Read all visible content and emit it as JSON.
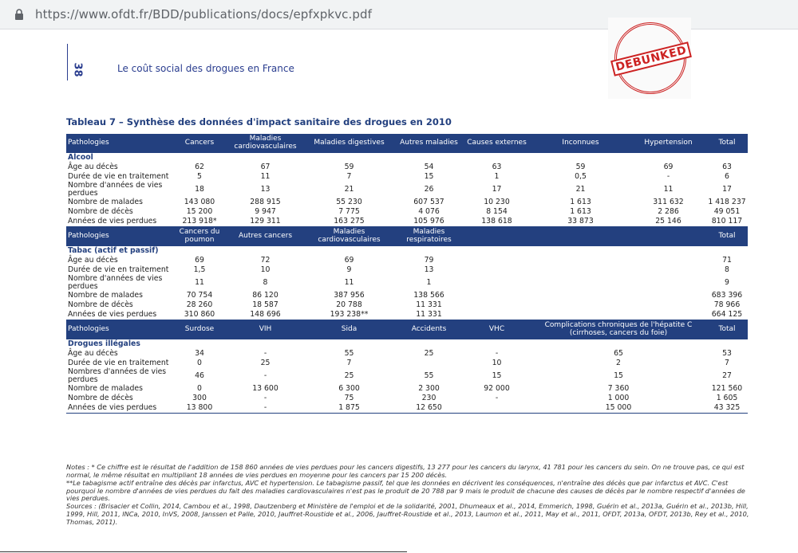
{
  "browser": {
    "url": "https://www.ofdt.fr/BDD/publications/docs/epfxpkvc.pdf"
  },
  "header": {
    "page_number": "38",
    "running_title": "Le coût social des drogues en France",
    "stamp": "DEBUNKED"
  },
  "table": {
    "title": "Tableau 7 – Synthèse des données d'impact sanitaire des drogues en 2010",
    "sections": [
      {
        "headers": [
          "Pathologies",
          "Cancers",
          "Maladies cardiovasculaires",
          "Maladies digestives",
          "Autres maladies",
          "Causes externes",
          "Inconnues",
          "Hypertension",
          "Total"
        ],
        "label": "Alcool",
        "rows": [
          {
            "label": "Âge au décès",
            "cells": [
              "62",
              "67",
              "59",
              "54",
              "63",
              "59",
              "69",
              "63"
            ]
          },
          {
            "label": "Durée de vie en traitement",
            "cells": [
              "5",
              "11",
              "7",
              "15",
              "1",
              "0,5",
              "-",
              "6"
            ]
          },
          {
            "label": "Nombre d'années de vies perdues",
            "cells": [
              "18",
              "13",
              "21",
              "26",
              "17",
              "21",
              "11",
              "17"
            ]
          },
          {
            "label": "Nombre de malades",
            "cells": [
              "143 080",
              "288 915",
              "55 230",
              "607 537",
              "10 230",
              "1 613",
              "311 632",
              "1 418 237"
            ]
          },
          {
            "label": "Nombre de décès",
            "cells": [
              "15 200",
              "9 947",
              "7 775",
              "4 076",
              "8 154",
              "1 613",
              "2 286",
              "49 051"
            ]
          },
          {
            "label": "Années de vies perdues",
            "cells": [
              "213 918*",
              "129 311",
              "163 275",
              "105 976",
              "138 618",
              "33 873",
              "25 146",
              "810 117"
            ]
          }
        ]
      },
      {
        "headers": [
          "Pathologies",
          "Cancers du poumon",
          "Autres cancers",
          "Maladies cardiovasculaires",
          "Maladies respiratoires",
          null,
          null,
          null,
          "Total"
        ],
        "label": "Tabac (actif et passif)",
        "rows": [
          {
            "label": "Âge au décès",
            "cells": [
              "69",
              "72",
              "69",
              "79",
              null,
              null,
              null,
              "71"
            ]
          },
          {
            "label": "Durée de vie en traitement",
            "cells": [
              "1,5",
              "10",
              "9",
              "13",
              null,
              null,
              null,
              "8"
            ]
          },
          {
            "label": "Nombre d'années de vies perdues",
            "cells": [
              "11",
              "8",
              "11",
              "1",
              null,
              null,
              null,
              "9"
            ]
          },
          {
            "label": "Nombre de malades",
            "cells": [
              "70 754",
              "86 120",
              "387 956",
              "138 566",
              null,
              null,
              null,
              "683 396"
            ]
          },
          {
            "label": "Nombre de décès",
            "cells": [
              "28 260",
              "18 587",
              "20 788",
              "11 331",
              null,
              null,
              null,
              "78 966"
            ]
          },
          {
            "label": "Années de vies perdues",
            "cells": [
              "310 860",
              "148 696",
              "193 238**",
              "11 331",
              null,
              null,
              null,
              "664 125"
            ]
          }
        ]
      },
      {
        "headers": [
          "Pathologies",
          "Surdose",
          "VIH",
          "Sida",
          "Accidents",
          "VHC",
          "Complications chroniques de l'hépatite C (cirrhoses, cancers du foie)",
          "Total"
        ],
        "label": "Drogues illégales",
        "rows": [
          {
            "label": "Âge au décès",
            "cells": [
              "34",
              "-",
              "55",
              "25",
              "-",
              "65",
              "53"
            ]
          },
          {
            "label": "Durée de vie en traitement",
            "cells": [
              "0",
              "25",
              "7",
              null,
              "10",
              "2",
              "7"
            ]
          },
          {
            "label": "Nombres d'années de vies perdues",
            "cells": [
              "46",
              "-",
              "25",
              "55",
              "15",
              "15",
              "27"
            ]
          },
          {
            "label": "Nombre de malades",
            "cells": [
              "0",
              "13 600",
              "6 300",
              "2 300",
              "92 000",
              "7 360",
              "121 560"
            ]
          },
          {
            "label": "Nombre de décès",
            "cells": [
              "300",
              "-",
              "75",
              "230",
              "-",
              "1 000",
              "1 605"
            ]
          },
          {
            "label": "Années de vies perdues",
            "cells": [
              "13 800",
              "-",
              "1 875",
              "12 650",
              null,
              "15 000",
              "43 325"
            ]
          }
        ]
      }
    ]
  },
  "notes": [
    "Notes : * Ce chiffre est le résultat de l'addition de 158 860 années de vies perdues pour les cancers digestifs, 13 277 pour les cancers du larynx, 41 781 pour les cancers du sein. On ne trouve pas, ce qui est normal, le même résultat en multipliant 18 années de vies perdues en moyenne pour les cancers par 15 200 décès.",
    "**Le tabagisme actif entraîne des décès par infarctus, AVC et hypertension. Le tabagisme passif, tel que les données en décrivent les conséquences, n'entraîne des décès que par infarctus et AVC. C'est pourquoi le nombre d'années de vies perdues du fait des maladies cardiovasculaires n'est pas le produit de 20 788 par 9 mais le produit de chacune des causes de décès par le nombre respectif d'années de vies perdues.",
    "Sources : (Brisacier et Collin, 2014, Cambou et al., 1998, Dautzenberg et Ministère de l'emploi et de la solidarité, 2001, Dhumeaux et al., 2014, Emmerich, 1998, Guérin et al., 2013a, Guérin et al., 2013b, Hill, 1999, Hill, 2011, INCa, 2010, InVS, 2008, Janssen et Palle, 2010, Jauffret-Roustide et al., 2006, Jauffret-Roustide et al., 2013, Laumon et al., 2011, May et al., 2011, OFDT, 2013a, OFDT, 2013b, Rey et al., 2010, Thomas, 2011)."
  ]
}
